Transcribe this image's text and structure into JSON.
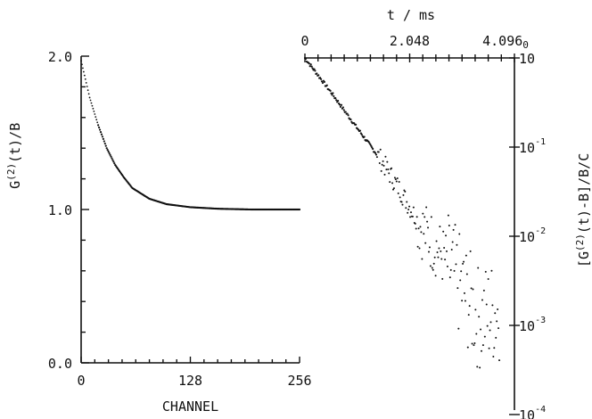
{
  "chart_data": [
    {
      "type": "scatter",
      "panel": "left",
      "xlabel": "CHANNEL",
      "ylabel": "G(2)(t)/B",
      "ylabel_main": "G",
      "ylabel_sup": "(2)",
      "ylabel_rest": "(t)/B",
      "xlim": [
        0,
        256
      ],
      "ylim": [
        0.0,
        2.0
      ],
      "x_ticks": [
        "0",
        "128",
        "256"
      ],
      "y_ticks": [
        "0.0",
        "1.0",
        "2.0"
      ],
      "series": [
        {
          "x": [
            0,
            5,
            10,
            20,
            30,
            40,
            50,
            60,
            80,
            100,
            128,
            160,
            200,
            256
          ],
          "values": [
            1.97,
            1.85,
            1.73,
            1.55,
            1.4,
            1.29,
            1.21,
            1.14,
            1.07,
            1.035,
            1.015,
            1.005,
            1.0,
            1.0
          ]
        }
      ]
    },
    {
      "type": "scatter",
      "panel": "right",
      "title": "t / ms",
      "ylabel": "[G(2)(t)-B]/B/C",
      "ylabel_main": "[G",
      "ylabel_sup": "(2)",
      "ylabel_rest": "(t)-B]/B/C",
      "xlim": [
        0,
        4.096
      ],
      "ylim": [
        0.0001,
        1
      ],
      "y_scale": "log",
      "x_ticks": [
        "0",
        "2.048",
        "4.096"
      ],
      "x_tick_suffix": "0",
      "y_ticks": [
        {
          "base": "10",
          "exp": "0"
        },
        {
          "base": "10",
          "exp": "-1"
        },
        {
          "base": "10",
          "exp": "-2"
        },
        {
          "base": "10",
          "exp": "-3"
        },
        {
          "base": "10",
          "exp": "-4"
        }
      ],
      "series": [
        {
          "x": [
            0.0,
            0.5,
            1.0,
            1.5,
            1.9,
            2.3,
            2.7,
            3.0,
            3.4,
            3.8
          ],
          "values": [
            1.0,
            0.42,
            0.17,
            0.07,
            0.03,
            0.012,
            0.006,
            0.003,
            0.0012,
            0.0015
          ]
        }
      ]
    }
  ]
}
